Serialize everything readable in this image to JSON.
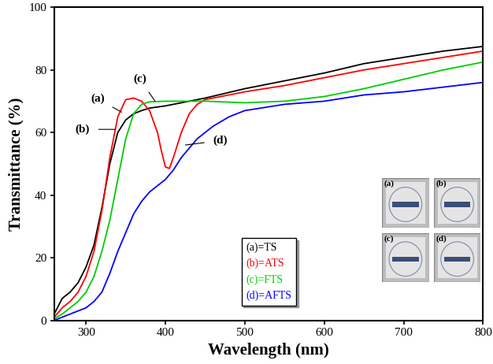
{
  "chart_data": {
    "type": "line",
    "x_label": "Wavelength (nm)",
    "y_label": "Transmittance (%)",
    "xlim": [
      260,
      800
    ],
    "xticks": [
      300,
      400,
      500,
      600,
      700,
      800
    ],
    "ylim": [
      0,
      100
    ],
    "yticks": [
      0,
      20,
      40,
      60,
      80,
      100
    ],
    "grid": false,
    "legend": "lower center",
    "series": [
      {
        "name": "(a)=TS",
        "color": "#000000",
        "x": [
          260,
          270,
          280,
          290,
          300,
          310,
          320,
          330,
          340,
          350,
          360,
          370,
          380,
          400,
          420,
          450,
          500,
          550,
          600,
          650,
          700,
          750,
          800
        ],
        "values": [
          2,
          7,
          9,
          12,
          17,
          24,
          36,
          50,
          60,
          64,
          66,
          67,
          67.8,
          68.5,
          69.5,
          71,
          74,
          76.5,
          79,
          82,
          84,
          86,
          87.5
        ]
      },
      {
        "name": "(b)=ATS",
        "color": "#ff0000",
        "x": [
          260,
          270,
          280,
          290,
          300,
          310,
          320,
          330,
          340,
          350,
          360,
          370,
          380,
          390,
          395,
          400,
          405,
          410,
          420,
          430,
          440,
          450,
          500,
          550,
          600,
          650,
          700,
          750,
          800
        ],
        "values": [
          1,
          4,
          6,
          9,
          14,
          22,
          35,
          52,
          65,
          70.5,
          71,
          70,
          67,
          60,
          54,
          49,
          48.5,
          52,
          60,
          66,
          69,
          70.5,
          73,
          75,
          77.5,
          80,
          82,
          84,
          86
        ]
      },
      {
        "name": "(c)=FTS",
        "color": "#00cc00",
        "x": [
          260,
          270,
          280,
          290,
          300,
          310,
          320,
          330,
          340,
          350,
          360,
          370,
          380,
          400,
          450,
          500,
          550,
          600,
          650,
          700,
          750,
          800
        ],
        "values": [
          0.5,
          2,
          4,
          6,
          9,
          14,
          22,
          32,
          45,
          58,
          66,
          69,
          69.8,
          70,
          70,
          69.5,
          70,
          71.5,
          74,
          77,
          80,
          82.5
        ]
      },
      {
        "name": "(d)=AFTS",
        "color": "#0000ff",
        "x": [
          260,
          270,
          280,
          290,
          300,
          310,
          320,
          330,
          340,
          350,
          360,
          370,
          380,
          390,
          400,
          410,
          420,
          440,
          460,
          480,
          500,
          550,
          600,
          650,
          700,
          750,
          800
        ],
        "values": [
          0,
          1,
          2,
          3,
          4,
          6,
          9,
          15,
          22,
          28,
          34,
          38,
          41,
          43,
          45,
          48,
          52,
          58,
          62,
          65,
          67,
          69,
          70,
          72,
          73,
          74.5,
          76
        ]
      }
    ],
    "annotations": [
      {
        "text": "(a)",
        "x": 345,
        "y": 66.5
      },
      {
        "text": "(b)",
        "x": 337,
        "y": 61
      },
      {
        "text": "(c)",
        "x": 387,
        "y": 70
      },
      {
        "text": "(d)",
        "x": 425,
        "y": 56
      }
    ],
    "inset_labels": [
      "(a)",
      "(b)",
      "(c)",
      "(d)"
    ]
  }
}
